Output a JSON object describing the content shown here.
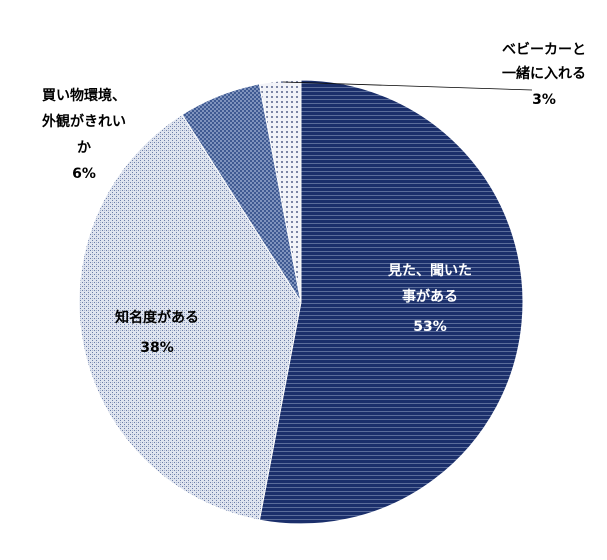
{
  "chart_data": {
    "type": "pie",
    "title": "",
    "start_angle_deg": 0,
    "direction": "clockwise",
    "slices": [
      {
        "label_lines": [
          "見た、聞いた",
          "事がある"
        ],
        "pct_label": "53%",
        "value": 53,
        "color": "#1b2f6b",
        "label_color": "#ffffff",
        "pattern": "hstripe-dark"
      },
      {
        "label_lines": [
          "知名度がある"
        ],
        "pct_label": "38%",
        "value": 38,
        "color": "#dfe4ef",
        "label_color": "#000000",
        "pattern": "hatch-light"
      },
      {
        "label_lines": [
          "買い物環境、",
          "外観がきれい",
          "か"
        ],
        "pct_label": "6%",
        "value": 6,
        "color": "#3f5a92",
        "label_color": "#000000",
        "pattern": "check-mid"
      },
      {
        "label_lines": [
          "ベビーカーと",
          "一緒に入れる"
        ],
        "pct_label": "3%",
        "value": 3,
        "color": "#eef0f6",
        "label_color": "#000000",
        "pattern": "dots-light"
      }
    ]
  }
}
